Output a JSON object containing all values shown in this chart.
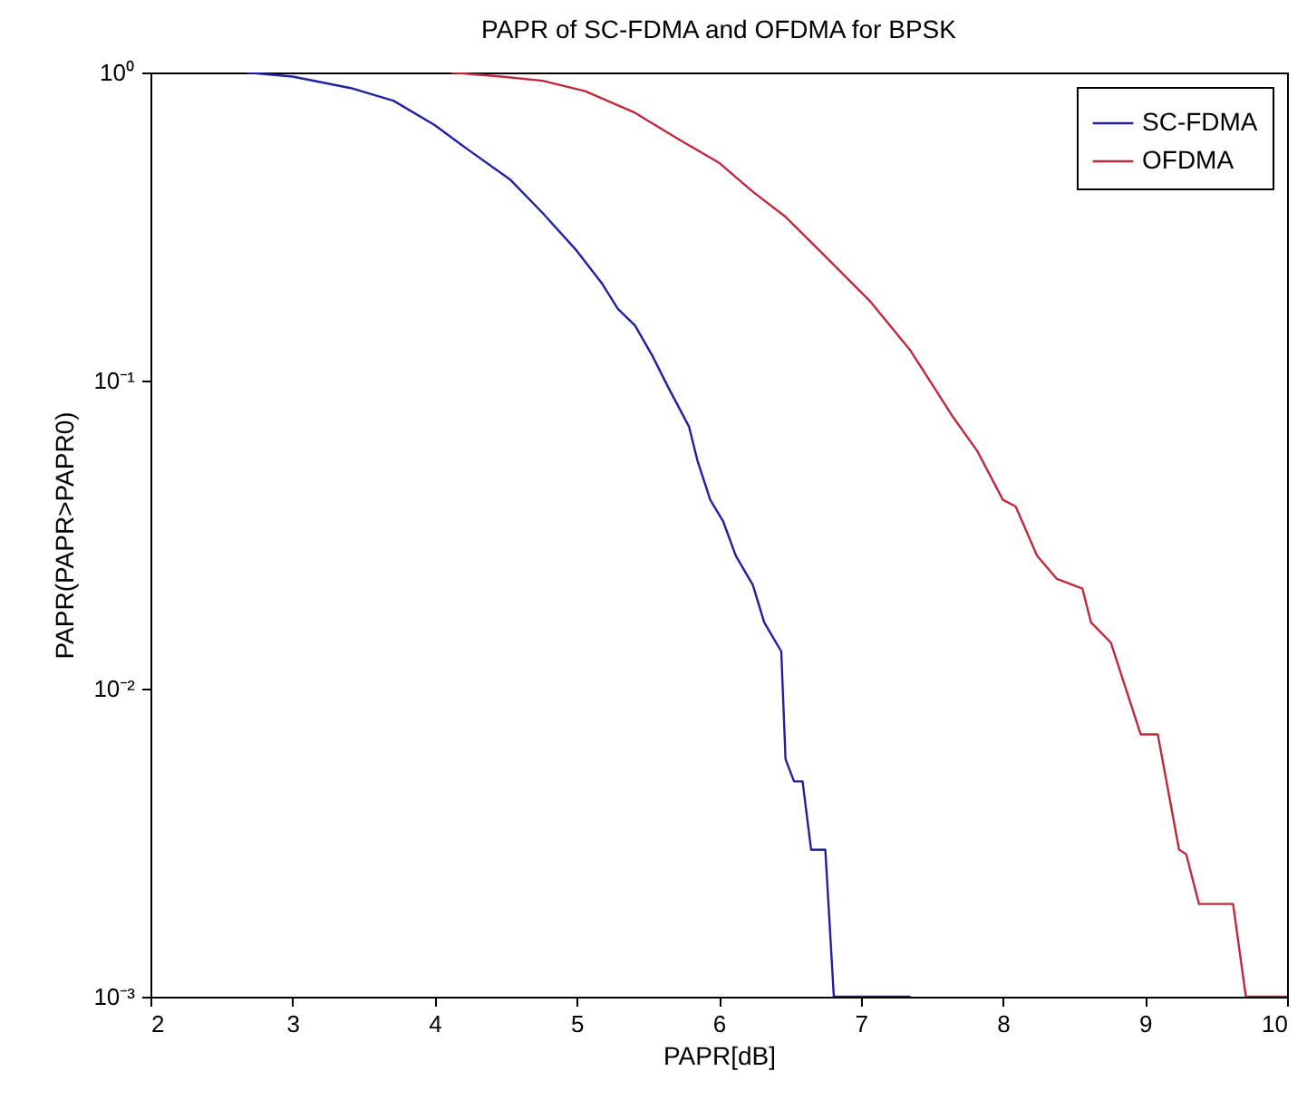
{
  "chart_data": {
    "type": "line",
    "title": "PAPR of SC-FDMA and OFDMA for BPSK",
    "xlabel": "PAPR[dB]",
    "ylabel": "PAPR(PAPR>PAPR0)",
    "log": true,
    "grid": false,
    "legend": "top right",
    "line_style": "solid",
    "marker": "none",
    "xlim": [
      2,
      10
    ],
    "xticks": [
      2,
      3,
      4,
      5,
      6,
      7,
      8,
      9,
      10
    ],
    "ylim": [
      0.001,
      1
    ],
    "yticks": [
      {
        "value": 0.001,
        "label": "10⁻³"
      },
      {
        "value": 0.01,
        "label": "10⁻²"
      },
      {
        "value": 0.1,
        "label": "10⁻¹"
      },
      {
        "value": 1,
        "label": "10⁰"
      }
    ],
    "series": [
      {
        "name": "SC-FDMA",
        "color": "#2020a0",
        "x": [
          2.68,
          3.0,
          3.41,
          3.71,
          4.0,
          4.24,
          4.53,
          4.76,
          5.0,
          5.18,
          5.29,
          5.41,
          5.53,
          5.65,
          5.79,
          5.85,
          5.94,
          6.03,
          6.12,
          6.24,
          6.32,
          6.44,
          6.47,
          6.53,
          6.59,
          6.65,
          6.75,
          6.81,
          7.35
        ],
        "values": [
          1,
          0.97,
          0.89,
          0.81,
          0.675,
          0.56,
          0.45,
          0.35,
          0.264,
          0.206,
          0.171,
          0.151,
          0.121,
          0.094,
          0.071,
          0.055,
          0.041,
          0.035,
          0.027,
          0.0217,
          0.0164,
          0.0132,
          0.0059,
          0.005,
          0.005,
          0.003,
          0.003,
          0.001,
          0.001
        ]
      },
      {
        "name": "OFDMA",
        "color": "#c0283c",
        "x": [
          4.12,
          4.47,
          4.76,
          5.06,
          5.41,
          5.71,
          6.0,
          6.24,
          6.47,
          6.71,
          7.06,
          7.35,
          7.65,
          7.82,
          8.0,
          8.09,
          8.24,
          8.38,
          8.56,
          8.62,
          8.76,
          8.97,
          9.09,
          9.24,
          9.29,
          9.38,
          9.62,
          9.71,
          10
        ],
        "values": [
          1,
          0.97,
          0.94,
          0.87,
          0.74,
          0.61,
          0.51,
          0.41,
          0.34,
          0.264,
          0.182,
          0.125,
          0.076,
          0.059,
          0.041,
          0.039,
          0.027,
          0.0227,
          0.0211,
          0.0164,
          0.0141,
          0.0071,
          0.0071,
          0.003,
          0.0029,
          0.002,
          0.002,
          0.001,
          0.001
        ]
      }
    ]
  }
}
